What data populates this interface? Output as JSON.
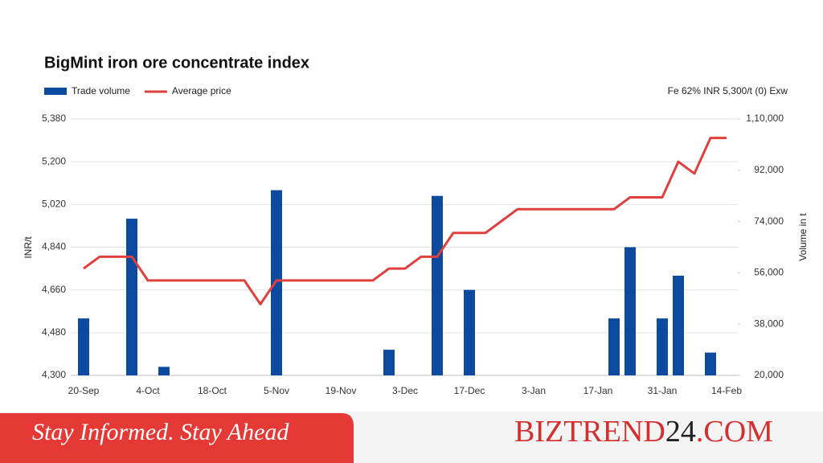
{
  "chart_data": {
    "type": "bar-line",
    "title": "BigMint iron ore concentrate index",
    "note": "Fe 62%  INR 5,300/t (0) Exw",
    "y_label": "INR/t",
    "y2_label": "Volume in t",
    "categories": [
      "20-Sep",
      null,
      null,
      null,
      "4-Oct",
      null,
      null,
      null,
      "18-Oct",
      null,
      null,
      null,
      "5-Nov",
      null,
      null,
      null,
      "19-Nov",
      null,
      null,
      null,
      "3-Dec",
      null,
      null,
      null,
      "17-Dec",
      null,
      null,
      null,
      "3-Jan",
      null,
      null,
      null,
      "17-Jan",
      null,
      null,
      null,
      "31-Jan",
      null,
      null,
      null,
      "14-Feb"
    ],
    "series": [
      {
        "name": "Trade volume",
        "type": "bar",
        "axis": "y2",
        "color": "#0b4a9e",
        "values": [
          40000,
          null,
          null,
          75000,
          null,
          23000,
          null,
          null,
          null,
          null,
          null,
          null,
          85000,
          null,
          null,
          null,
          null,
          null,
          null,
          29000,
          null,
          null,
          83000,
          null,
          50000,
          null,
          null,
          null,
          null,
          null,
          null,
          null,
          null,
          40000,
          65000,
          null,
          40000,
          55000,
          null,
          28000,
          null
        ]
      },
      {
        "name": "Average price",
        "type": "line",
        "color": "#e0403d",
        "values": [
          4750,
          4800,
          4800,
          4800,
          4700,
          4700,
          4700,
          4700,
          4700,
          4700,
          4700,
          4600,
          4700,
          4700,
          4700,
          4700,
          4700,
          4700,
          4700,
          4750,
          4750,
          4800,
          4800,
          4900,
          4900,
          4900,
          4950,
          5000,
          5000,
          5000,
          5000,
          5000,
          5000,
          5000,
          5050,
          5050,
          5050,
          5200,
          5150,
          5300,
          5300
        ]
      }
    ],
    "ylim": [
      4300,
      5380
    ],
    "yticks": [
      {
        "value": 4300,
        "label": "4,300"
      },
      {
        "value": 4480,
        "label": "4,480"
      },
      {
        "value": 4660,
        "label": "4,660"
      },
      {
        "value": 4840,
        "label": "4,840"
      },
      {
        "value": 5020,
        "label": "5,020"
      },
      {
        "value": 5200,
        "label": "5,200"
      },
      {
        "value": 5380,
        "label": "5,380"
      }
    ],
    "y2lim": [
      20000,
      110000
    ],
    "y2ticks": [
      {
        "value": 20000,
        "label": "20,000"
      },
      {
        "value": 38000,
        "label": "38,000"
      },
      {
        "value": 56000,
        "label": "56,000"
      },
      {
        "value": 74000,
        "label": "74,000"
      },
      {
        "value": 92000,
        "label": "92,000"
      },
      {
        "value": 110000,
        "label": "1,10,000"
      }
    ],
    "grid": true,
    "legend": "top-left"
  },
  "banner": {
    "tagline": "Stay Informed. Stay Ahead",
    "brand": [
      "BIZTREND",
      "24",
      ".COM"
    ]
  }
}
